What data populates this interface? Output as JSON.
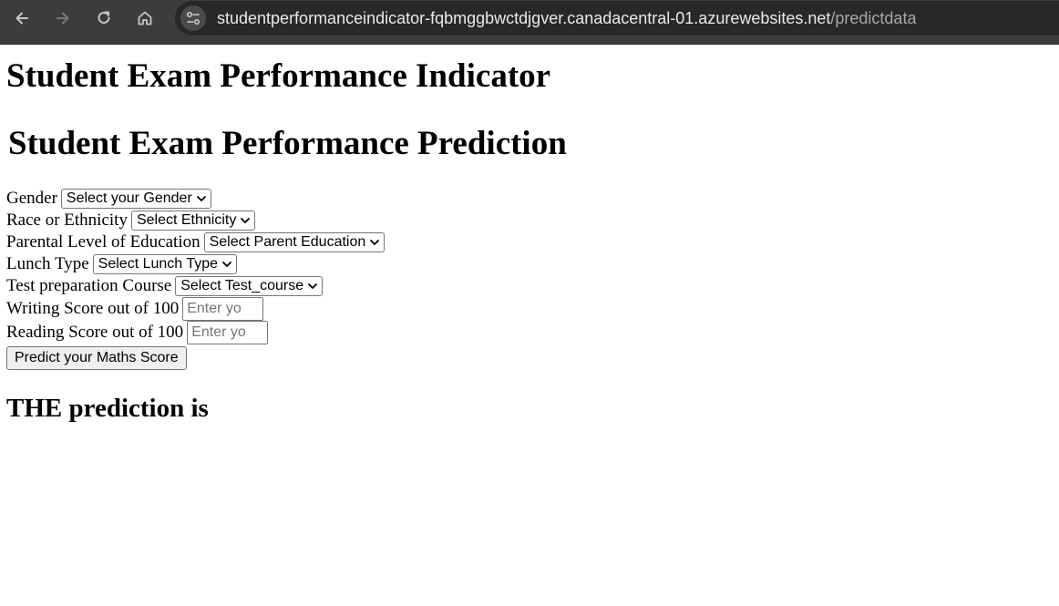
{
  "browser": {
    "url_host": "studentperformanceindicator-fqbmggbwctdjgver.canadacentral-01.azurewebsites.net",
    "url_path": "/predictdata",
    "icons": [
      "back-arrow-icon",
      "forward-arrow-icon",
      "reload-icon",
      "home-icon",
      "site-info-icon"
    ]
  },
  "page": {
    "title": "Student Exam Performance Indicator",
    "subtitle": "Student Exam Performance Prediction"
  },
  "form": {
    "gender": {
      "label": "Gender",
      "selected": "Select your Gender"
    },
    "ethnicity": {
      "label": "Race or Ethnicity",
      "selected": "Select Ethnicity"
    },
    "parental_education": {
      "label": "Parental Level of Education",
      "selected": "Select Parent Education"
    },
    "lunch": {
      "label": "Lunch Type",
      "selected": "Select Lunch Type"
    },
    "test_prep": {
      "label": "Test preparation Course",
      "selected": "Select Test_course"
    },
    "writing": {
      "label": "Writing Score out of 100",
      "placeholder": "Enter yo"
    },
    "reading": {
      "label": "Reading Score out of 100",
      "placeholder": "Enter yo"
    },
    "submit_label": "Predict your Maths Score"
  },
  "result": {
    "heading": "THE prediction is"
  }
}
